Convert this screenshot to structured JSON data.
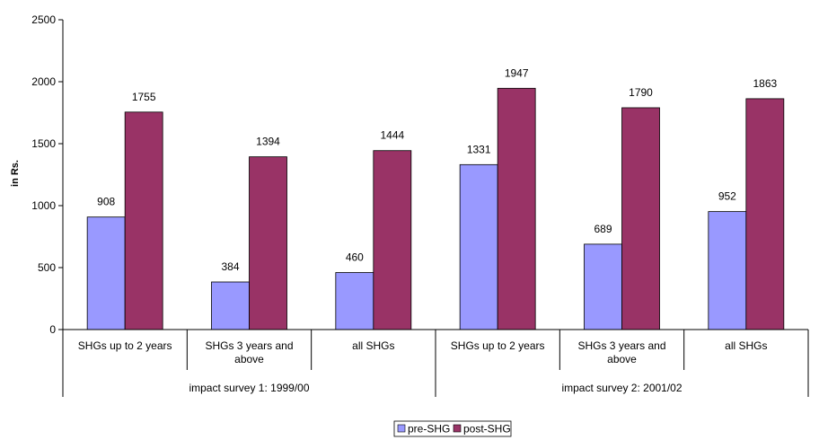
{
  "chart_data": {
    "type": "bar",
    "ylabel": "in Rs.",
    "ylim": [
      0,
      2500
    ],
    "yticks": [
      0,
      500,
      1000,
      1500,
      2000,
      2500
    ],
    "grid": false,
    "legend_position": "bottom",
    "categories": [
      "SHGs up to 2 years",
      "SHGs 3 years and above",
      "all SHGs",
      "SHGs up to 2 years",
      "SHGs 3 years and above",
      "all SHGs"
    ],
    "groups": [
      {
        "label": "impact survey 1: 1999/00",
        "span": 3
      },
      {
        "label": "impact survey 2: 2001/02",
        "span": 3
      }
    ],
    "series": [
      {
        "name": "pre-SHG",
        "color": "#9999ff",
        "values": [
          908,
          384,
          460,
          1331,
          689,
          952
        ]
      },
      {
        "name": "post-SHG",
        "color": "#993366",
        "values": [
          1755,
          1394,
          1444,
          1947,
          1790,
          1863
        ]
      }
    ]
  }
}
